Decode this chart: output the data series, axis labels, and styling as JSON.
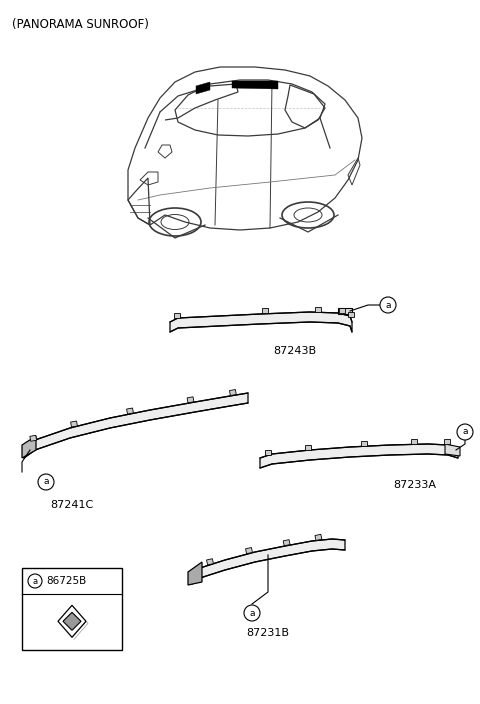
{
  "title": "(PANORAMA SUNROOF)",
  "background_color": "#ffffff",
  "line_color": "#000000",
  "text_color": "#000000",
  "parts": [
    {
      "label": "87243B",
      "ref": "a"
    },
    {
      "label": "87241C",
      "ref": "a"
    },
    {
      "label": "87233A",
      "ref": "a"
    },
    {
      "label": "87231B",
      "ref": "a"
    },
    {
      "label": "86725B",
      "ref": "a"
    }
  ],
  "figsize": [
    4.8,
    7.04
  ],
  "dpi": 100
}
